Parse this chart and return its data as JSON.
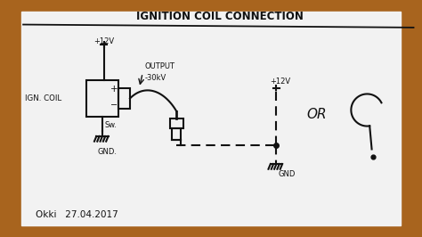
{
  "bg_color": "#a8641e",
  "paper_color": "#f2f2f2",
  "title": "IGNITION COIL CONNECTION",
  "label_ign_coil": "IGN. COIL",
  "label_output1": "OUTPUT",
  "label_output2": "-30kV",
  "label_plus12v_1": "+12V",
  "label_plus12v_2": "+12V",
  "label_sw": "Sw.",
  "label_gnd1": "GND.",
  "label_gnd2": "GND",
  "label_or": "OR",
  "label_okki": "Okki   27.04.2017",
  "text_color": "#111111",
  "line_color": "#111111",
  "line_width": 1.5
}
